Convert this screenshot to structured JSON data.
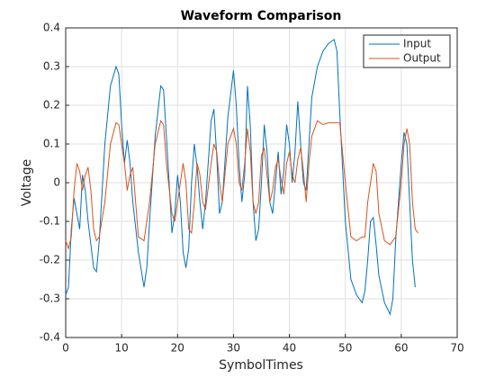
{
  "chart_data": {
    "type": "line",
    "title": "Waveform Comparison",
    "xlabel": "SymbolTimes",
    "ylabel": "Voltage",
    "xlim": [
      0,
      70
    ],
    "xticks": [
      0,
      10,
      20,
      30,
      40,
      50,
      60,
      70
    ],
    "ylim": [
      -0.4,
      0.4
    ],
    "yticks": [
      -0.4,
      -0.3,
      -0.2,
      -0.1,
      0,
      0.1,
      0.2,
      0.3,
      0.4
    ],
    "grid": true,
    "legend": "northeast",
    "series": [
      {
        "name": "Input",
        "color": "#0072BD",
        "x": [
          0,
          0.5,
          1,
          1.5,
          2,
          2.5,
          3,
          3.5,
          4,
          5,
          5.5,
          6,
          7,
          8,
          9,
          9.5,
          10,
          10.5,
          11,
          11.5,
          12,
          13,
          14,
          14.5,
          15,
          16,
          17,
          17.5,
          18,
          18.5,
          19,
          19.5,
          20,
          20.5,
          21,
          21.5,
          22,
          22.5,
          23,
          23.5,
          24,
          24.5,
          25,
          26,
          26.5,
          27,
          27.5,
          28,
          29,
          30,
          30.5,
          31,
          31.5,
          32,
          32.5,
          33,
          33.5,
          34,
          34.5,
          35,
          35.5,
          36,
          36.5,
          37,
          37.5,
          38,
          38.5,
          39,
          39.5,
          40,
          40.5,
          41,
          41.5,
          42,
          42.5,
          43,
          43.5,
          44,
          45,
          46,
          47,
          48,
          48.5,
          49,
          50,
          51,
          52,
          53,
          53.5,
          54,
          54.5,
          55,
          55.5,
          56,
          57,
          58,
          58.5,
          59,
          60,
          60.5,
          61,
          61.5,
          62,
          62.5
        ],
        "values": [
          -0.29,
          -0.27,
          -0.12,
          -0.04,
          -0.08,
          -0.12,
          0.02,
          -0.02,
          -0.1,
          -0.22,
          -0.23,
          -0.15,
          0.1,
          0.25,
          0.3,
          0.28,
          0.15,
          0.05,
          0.11,
          0.05,
          -0.05,
          -0.18,
          -0.27,
          -0.22,
          -0.1,
          0.12,
          0.25,
          0.24,
          0.12,
          0,
          -0.13,
          -0.08,
          0.02,
          -0.05,
          -0.18,
          -0.22,
          -0.17,
          0,
          0.1,
          0.04,
          -0.05,
          -0.12,
          -0.05,
          0.16,
          0.19,
          0.07,
          -0.08,
          -0.05,
          0.17,
          0.29,
          0.2,
          0.05,
          -0.05,
          0.02,
          0.25,
          0.15,
          -0.05,
          -0.15,
          -0.12,
          0,
          0.15,
          0.08,
          -0.05,
          -0.08,
          0,
          0.08,
          -0.03,
          0.03,
          0.15,
          0.1,
          0,
          0.08,
          0.21,
          0.1,
          0,
          -0.02,
          0.1,
          0.22,
          0.3,
          0.34,
          0.36,
          0.37,
          0.34,
          0.18,
          -0.1,
          -0.25,
          -0.29,
          -0.31,
          -0.28,
          -0.2,
          -0.1,
          -0.09,
          -0.16,
          -0.24,
          -0.31,
          -0.34,
          -0.3,
          -0.15,
          0.05,
          0.13,
          0.1,
          -0.05,
          -0.2,
          -0.27
        ]
      },
      {
        "name": "Output",
        "color": "#D95319",
        "x": [
          0,
          0.5,
          1,
          1.5,
          2,
          2.5,
          3,
          3.5,
          4,
          4.5,
          5,
          5.5,
          6,
          7,
          8,
          9,
          9.5,
          10,
          10.5,
          11,
          11.5,
          12,
          12.5,
          13,
          14,
          15,
          16,
          17,
          17.5,
          18,
          19,
          19.5,
          20,
          21,
          21.5,
          22,
          22.5,
          23,
          23.5,
          24,
          24.5,
          25,
          26,
          26.5,
          27,
          27.5,
          28,
          29,
          30,
          30.5,
          31,
          31.5,
          32,
          32.5,
          33,
          33.5,
          34,
          34.5,
          35,
          35.5,
          36,
          36.5,
          37,
          37.5,
          38,
          38.5,
          39,
          39.5,
          40,
          40.5,
          41,
          41.5,
          42,
          42.5,
          43,
          43.5,
          44,
          45,
          46,
          47,
          48,
          49,
          50,
          51,
          52,
          53,
          53.5,
          54,
          55,
          55.5,
          56,
          57,
          58,
          59,
          60,
          60.5,
          61,
          61.5,
          62,
          62.5,
          63
        ],
        "values": [
          -0.15,
          -0.17,
          -0.14,
          -0.02,
          0.05,
          0.03,
          -0.02,
          0.02,
          0.04,
          -0.02,
          -0.12,
          -0.15,
          -0.14,
          -0.05,
          0.1,
          0.155,
          0.15,
          0.1,
          0.05,
          -0.02,
          0.02,
          0.04,
          -0.05,
          -0.14,
          -0.15,
          -0.05,
          0.1,
          0.16,
          0.15,
          0.05,
          -0.08,
          -0.1,
          -0.05,
          0.05,
          0,
          -0.12,
          -0.13,
          -0.05,
          0.05,
          0.02,
          -0.05,
          -0.07,
          0.05,
          0.1,
          0.08,
          0,
          -0.05,
          0.1,
          0.14,
          0.1,
          0,
          -0.02,
          0.05,
          0.14,
          0.08,
          -0.05,
          -0.08,
          -0.05,
          0.07,
          0.09,
          0.02,
          -0.05,
          -0.02,
          0.04,
          0.06,
          0.01,
          -0.03,
          0.05,
          0.08,
          0.02,
          0,
          0.06,
          0.09,
          0.03,
          -0.05,
          0.05,
          0.12,
          0.16,
          0.15,
          0.155,
          0.155,
          0.155,
          0,
          -0.14,
          -0.15,
          -0.14,
          -0.14,
          -0.05,
          0.05,
          0.03,
          -0.08,
          -0.15,
          -0.16,
          -0.14,
          0,
          0.1,
          0.14,
          0.1,
          -0.05,
          -0.12,
          -0.13
        ]
      }
    ]
  }
}
